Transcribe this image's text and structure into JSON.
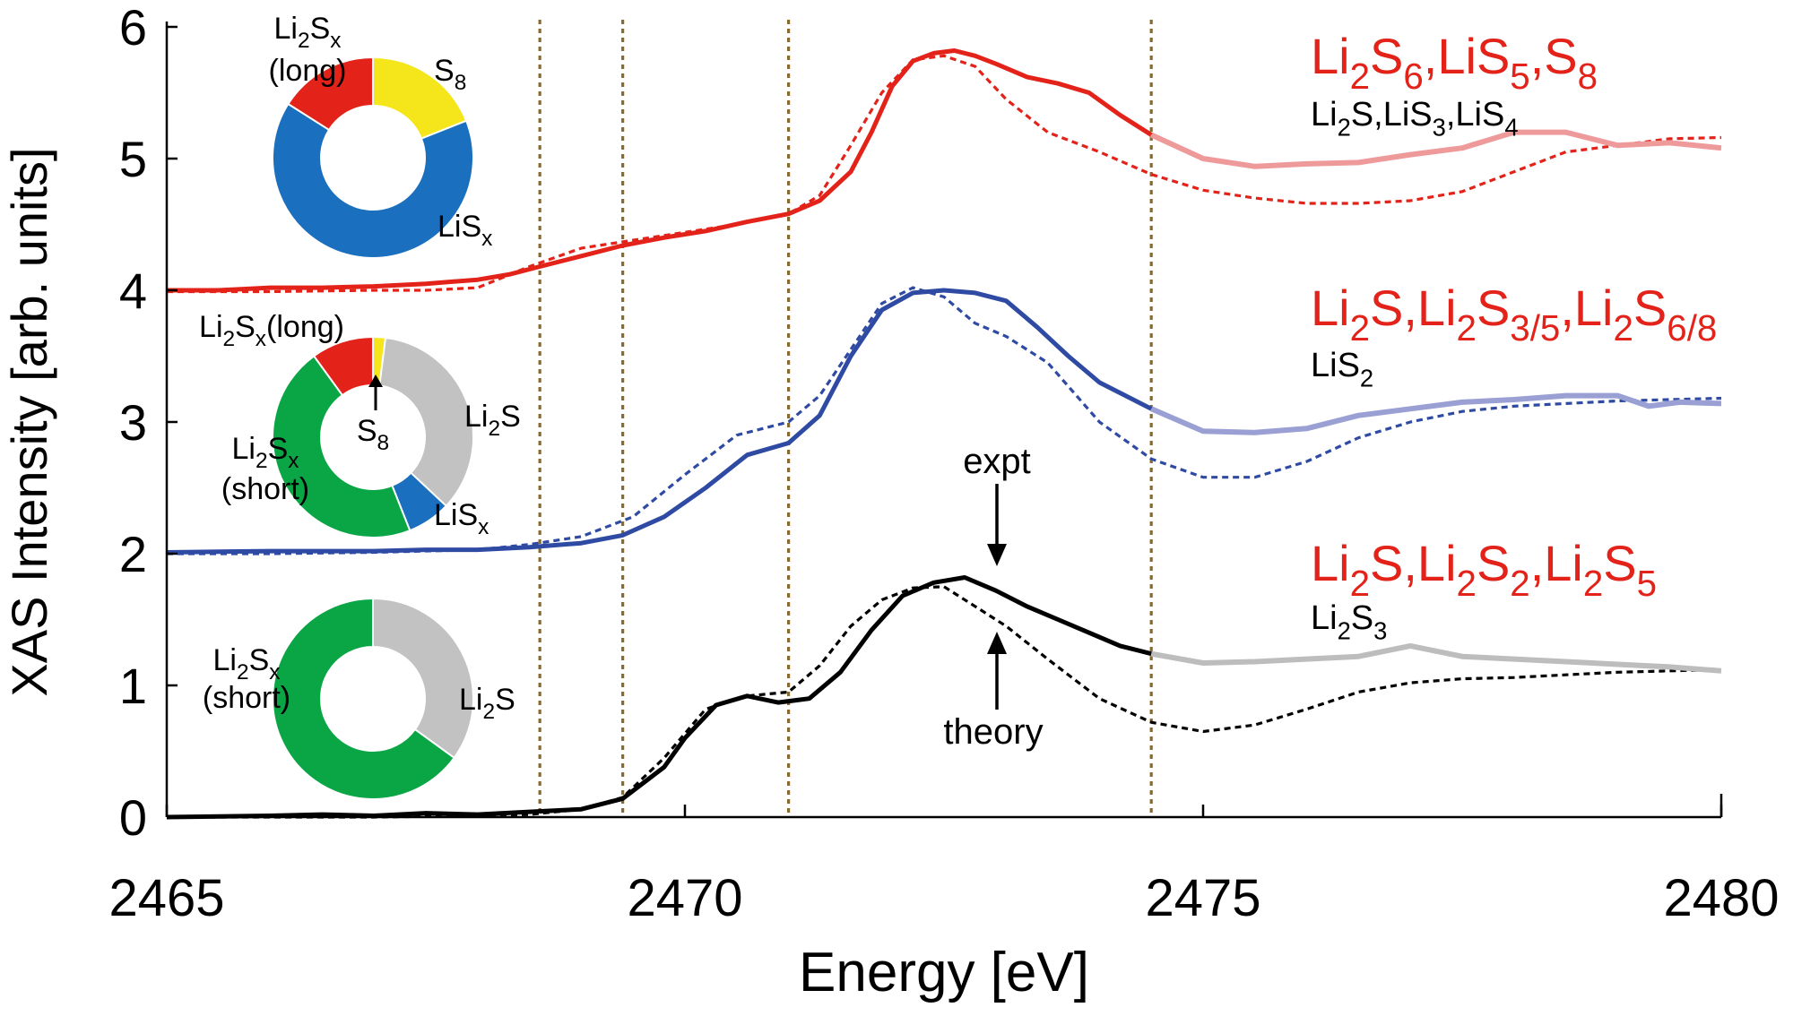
{
  "chart_data": {
    "type": "line",
    "title": "",
    "xlabel": "Energy [eV]",
    "ylabel": "XAS Intensity [arb. units]",
    "xlim": [
      2465,
      2480
    ],
    "ylim": [
      0,
      6
    ],
    "xticks": [
      2465,
      2470,
      2475,
      2480
    ],
    "yticks": [
      0,
      1,
      2,
      3,
      4,
      5,
      6
    ],
    "grid": false,
    "legend": "none",
    "vlines": [
      2468.6,
      2469.4,
      2471.0,
      2474.5
    ],
    "colors": {
      "red": "#e32219",
      "red_light": "#ef9a9a",
      "blue": "#2e4aa3",
      "blue_light": "#9a9fd4",
      "black": "#000000",
      "gray_light": "#bdbdbd",
      "guide": "#8a6a2c",
      "donut_red": "#e32219",
      "donut_yellow": "#f5e61b",
      "donut_blue": "#1a6fbf",
      "donut_green": "#0aa544",
      "donut_gray": "#c2c2c2"
    },
    "curves": [
      {
        "id": "red",
        "expt": {
          "x": [
            2465.0,
            2465.5,
            2466.0,
            2466.5,
            2467.0,
            2467.5,
            2468.0,
            2468.3,
            2468.6,
            2469.0,
            2469.4,
            2469.8,
            2470.2,
            2470.6,
            2471.0,
            2471.3,
            2471.6,
            2471.8,
            2472.0,
            2472.2,
            2472.4,
            2472.6,
            2472.8,
            2473.0,
            2473.3,
            2473.6,
            2473.9,
            2474.2,
            2474.5
          ],
          "y": [
            4.0,
            4.0,
            4.02,
            4.02,
            4.03,
            4.05,
            4.08,
            4.12,
            4.18,
            4.26,
            4.34,
            4.4,
            4.45,
            4.52,
            4.58,
            4.68,
            4.9,
            5.2,
            5.55,
            5.74,
            5.8,
            5.82,
            5.78,
            5.72,
            5.62,
            5.57,
            5.5,
            5.33,
            5.18
          ]
        },
        "expt_tail": {
          "x": [
            2474.5,
            2475.0,
            2475.5,
            2476.0,
            2476.5,
            2477.0,
            2477.5,
            2478.0,
            2478.5,
            2479.0,
            2479.5,
            2480.0
          ],
          "y": [
            5.18,
            5.0,
            4.94,
            4.96,
            4.97,
            5.03,
            5.08,
            5.2,
            5.2,
            5.1,
            5.12,
            5.08
          ]
        },
        "theory": {
          "x": [
            2465.0,
            2466.0,
            2467.0,
            2467.5,
            2468.0,
            2468.5,
            2469.0,
            2469.5,
            2470.0,
            2470.5,
            2471.0,
            2471.3,
            2471.6,
            2471.9,
            2472.2,
            2472.5,
            2472.8,
            2473.1,
            2473.5,
            2474.0,
            2474.5,
            2475.0,
            2475.5,
            2476.0,
            2476.5,
            2477.0,
            2477.5,
            2478.0,
            2478.5,
            2479.0,
            2479.5,
            2480.0
          ],
          "y": [
            3.99,
            3.99,
            4.0,
            4.0,
            4.02,
            4.18,
            4.32,
            4.38,
            4.44,
            4.5,
            4.58,
            4.72,
            5.1,
            5.5,
            5.75,
            5.78,
            5.7,
            5.45,
            5.2,
            5.05,
            4.88,
            4.76,
            4.7,
            4.66,
            4.66,
            4.68,
            4.75,
            4.9,
            5.05,
            5.1,
            5.15,
            5.16
          ]
        }
      },
      {
        "id": "blue",
        "expt": {
          "x": [
            2465.0,
            2466.0,
            2467.0,
            2467.5,
            2468.0,
            2468.5,
            2469.0,
            2469.4,
            2469.8,
            2470.2,
            2470.6,
            2471.0,
            2471.3,
            2471.6,
            2471.9,
            2472.2,
            2472.5,
            2472.8,
            2473.1,
            2473.4,
            2473.7,
            2474.0,
            2474.5
          ],
          "y": [
            2.01,
            2.02,
            2.02,
            2.03,
            2.03,
            2.05,
            2.08,
            2.14,
            2.28,
            2.5,
            2.75,
            2.84,
            3.05,
            3.5,
            3.85,
            3.98,
            4.0,
            3.98,
            3.92,
            3.72,
            3.5,
            3.3,
            3.1
          ]
        },
        "expt_tail": {
          "x": [
            2474.5,
            2475.0,
            2475.5,
            2476.0,
            2476.5,
            2477.0,
            2477.5,
            2478.0,
            2478.5,
            2479.0,
            2479.3,
            2479.6,
            2480.0
          ],
          "y": [
            3.1,
            2.93,
            2.92,
            2.95,
            3.05,
            3.1,
            3.15,
            3.17,
            3.2,
            3.2,
            3.12,
            3.15,
            3.14
          ]
        },
        "theory": {
          "x": [
            2465.0,
            2466.0,
            2467.0,
            2468.0,
            2468.5,
            2469.0,
            2469.5,
            2470.0,
            2470.5,
            2471.0,
            2471.3,
            2471.6,
            2471.9,
            2472.2,
            2472.5,
            2472.8,
            2473.1,
            2473.5,
            2474.0,
            2474.5,
            2475.0,
            2475.5,
            2476.0,
            2476.5,
            2477.0,
            2477.5,
            2478.0,
            2478.5,
            2479.0,
            2479.5,
            2480.0
          ],
          "y": [
            2.0,
            2.0,
            2.01,
            2.03,
            2.07,
            2.13,
            2.28,
            2.6,
            2.9,
            3.0,
            3.2,
            3.55,
            3.9,
            4.02,
            3.95,
            3.75,
            3.65,
            3.45,
            3.0,
            2.72,
            2.58,
            2.58,
            2.7,
            2.88,
            3.0,
            3.08,
            3.12,
            3.14,
            3.16,
            3.17,
            3.18
          ]
        }
      },
      {
        "id": "black",
        "expt": {
          "x": [
            2465.0,
            2466.0,
            2466.5,
            2467.0,
            2467.5,
            2468.0,
            2468.5,
            2469.0,
            2469.4,
            2469.8,
            2470.0,
            2470.3,
            2470.6,
            2470.9,
            2471.2,
            2471.5,
            2471.8,
            2472.1,
            2472.4,
            2472.7,
            2473.0,
            2473.3,
            2473.6,
            2473.9,
            2474.2,
            2474.5
          ],
          "y": [
            0.0,
            0.01,
            0.02,
            0.01,
            0.03,
            0.02,
            0.04,
            0.06,
            0.14,
            0.38,
            0.6,
            0.85,
            0.92,
            0.87,
            0.9,
            1.1,
            1.42,
            1.68,
            1.78,
            1.82,
            1.72,
            1.6,
            1.5,
            1.4,
            1.3,
            1.24
          ]
        },
        "expt_tail": {
          "x": [
            2474.5,
            2475.0,
            2475.5,
            2476.0,
            2476.5,
            2477.0,
            2477.5,
            2478.0,
            2478.5,
            2479.0,
            2479.5,
            2480.0
          ],
          "y": [
            1.24,
            1.17,
            1.18,
            1.2,
            1.22,
            1.3,
            1.22,
            1.2,
            1.18,
            1.16,
            1.14,
            1.11
          ]
        },
        "theory": {
          "x": [
            2465.0,
            2466.0,
            2467.0,
            2468.0,
            2468.5,
            2469.0,
            2469.4,
            2469.8,
            2470.2,
            2470.6,
            2471.0,
            2471.3,
            2471.6,
            2471.9,
            2472.2,
            2472.5,
            2472.8,
            2473.1,
            2473.5,
            2474.0,
            2474.5,
            2475.0,
            2475.5,
            2476.0,
            2476.5,
            2477.0,
            2477.5,
            2478.0,
            2478.5,
            2479.0,
            2479.5,
            2480.0
          ],
          "y": [
            0.0,
            0.0,
            0.0,
            0.01,
            0.02,
            0.06,
            0.15,
            0.45,
            0.82,
            0.92,
            0.95,
            1.15,
            1.45,
            1.65,
            1.74,
            1.75,
            1.6,
            1.45,
            1.2,
            0.9,
            0.72,
            0.65,
            0.7,
            0.82,
            0.95,
            1.02,
            1.05,
            1.06,
            1.08,
            1.1,
            1.11,
            1.12
          ]
        }
      }
    ],
    "series_labels": [
      {
        "id": "red",
        "main": [
          "Li",
          {
            "sub": "2"
          },
          "S",
          {
            "sub": "6"
          },
          ",LiS",
          {
            "sub": "5"
          },
          ",S",
          {
            "sub": "8"
          }
        ],
        "minor": [
          "Li",
          {
            "sub": "2"
          },
          "S,LiS",
          {
            "sub": "3"
          },
          ",LiS",
          {
            "sub": "4"
          }
        ]
      },
      {
        "id": "blue",
        "main": [
          "Li",
          {
            "sub": "2"
          },
          "S,Li",
          {
            "sub": "2"
          },
          "S",
          {
            "sub": "3/5"
          },
          ",Li",
          {
            "sub": "2"
          },
          "S",
          {
            "sub": "6/8"
          }
        ],
        "minor": [
          "LiS",
          {
            "sub": "2"
          }
        ]
      },
      {
        "id": "black",
        "main": [
          "Li",
          {
            "sub": "2"
          },
          "S,Li",
          {
            "sub": "2"
          },
          "S",
          {
            "sub": "2"
          },
          ",Li",
          {
            "sub": "2"
          },
          "S",
          {
            "sub": "5"
          }
        ],
        "minor": [
          "Li",
          {
            "sub": "2"
          },
          "S",
          {
            "sub": "3"
          }
        ]
      }
    ],
    "annotations": [
      {
        "text": "expt"
      },
      {
        "text": "theory"
      }
    ],
    "donuts": [
      {
        "id": "donut-top",
        "slices": [
          {
            "fraction": 0.19,
            "color": "#f5e61b"
          },
          {
            "fraction": 0.65,
            "color": "#1a6fbf"
          },
          {
            "fraction": 0.16,
            "color": "#e32219"
          }
        ],
        "labels": [
          {
            "parts": [
              "S",
              {
                "sub": "8"
              }
            ]
          },
          {
            "parts": [
              "LiS",
              {
                "sub": "x"
              }
            ]
          },
          {
            "parts": [
              "Li",
              {
                "sub": "2"
              },
              "S",
              {
                "sub": "x"
              }
            ]
          },
          {
            "parts": [
              "(long)"
            ]
          }
        ]
      },
      {
        "id": "donut-middle",
        "slices": [
          {
            "fraction": 0.02,
            "color": "#f5e61b"
          },
          {
            "fraction": 0.35,
            "color": "#c2c2c2"
          },
          {
            "fraction": 0.07,
            "color": "#1a6fbf"
          },
          {
            "fraction": 0.46,
            "color": "#0aa544"
          },
          {
            "fraction": 0.1,
            "color": "#e32219"
          }
        ],
        "labels": [
          {
            "parts": [
              "Li",
              {
                "sub": "2"
              },
              "S",
              {
                "sub": "x"
              },
              "(long)"
            ]
          },
          {
            "parts": [
              "Li",
              {
                "sub": "2"
              },
              "S"
            ]
          },
          {
            "parts": [
              "LiS",
              {
                "sub": "x"
              }
            ]
          },
          {
            "parts": [
              "Li",
              {
                "sub": "2"
              },
              "S",
              {
                "sub": "x"
              }
            ]
          },
          {
            "parts": [
              "(short)"
            ]
          },
          {
            "parts": [
              "S",
              {
                "sub": "8"
              }
            ]
          }
        ]
      },
      {
        "id": "donut-bottom",
        "slices": [
          {
            "fraction": 0.35,
            "color": "#c2c2c2"
          },
          {
            "fraction": 0.65,
            "color": "#0aa544"
          }
        ],
        "labels": [
          {
            "parts": [
              "Li",
              {
                "sub": "2"
              },
              "S",
              {
                "sub": "x"
              }
            ]
          },
          {
            "parts": [
              "(short)"
            ]
          },
          {
            "parts": [
              "Li",
              {
                "sub": "2"
              },
              "S"
            ]
          }
        ]
      }
    ]
  }
}
